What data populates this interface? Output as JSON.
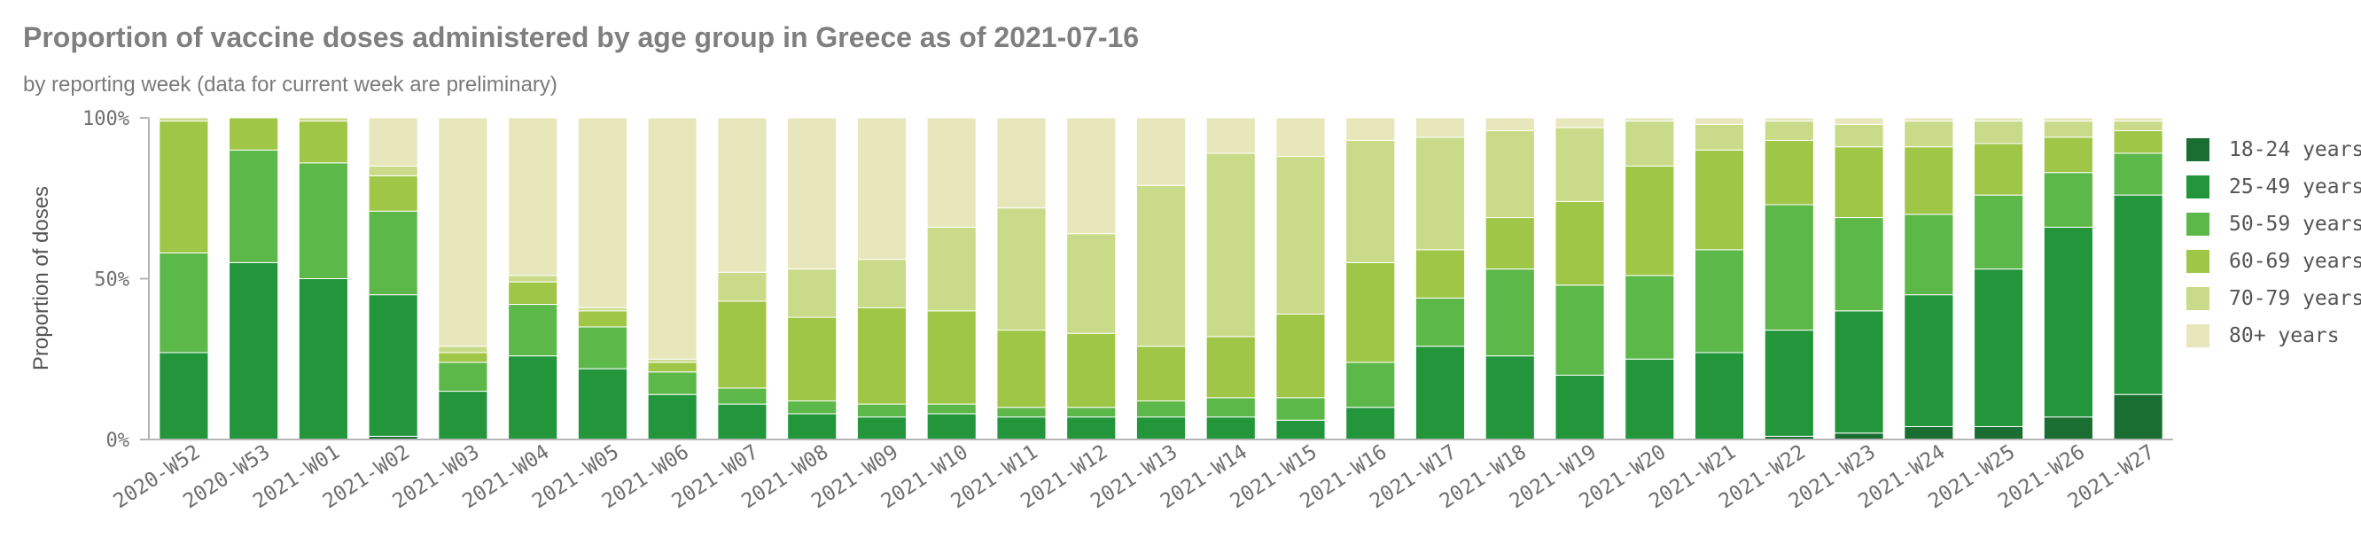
{
  "title": "Proportion of vaccine doses administered by age group in Greece as of 2021-07-16",
  "subtitle": "by reporting week (data for current week are preliminary)",
  "chart_data": {
    "type": "bar",
    "stacked": true,
    "title": "Proportion of vaccine doses administered by age group in Greece as of 2021-07-16",
    "subtitle": "by reporting week (data for current week are preliminary)",
    "xlabel": "",
    "ylabel": "Proportion of doses",
    "ylim": [
      0,
      100
    ],
    "yticks": [
      "0%",
      "50%",
      "100%"
    ],
    "grid": false,
    "legend_position": "right",
    "categories": [
      "2020-W52",
      "2020-W53",
      "2021-W01",
      "2021-W02",
      "2021-W03",
      "2021-W04",
      "2021-W05",
      "2021-W06",
      "2021-W07",
      "2021-W08",
      "2021-W09",
      "2021-W10",
      "2021-W11",
      "2021-W12",
      "2021-W13",
      "2021-W14",
      "2021-W15",
      "2021-W16",
      "2021-W17",
      "2021-W18",
      "2021-W19",
      "2021-W20",
      "2021-W21",
      "2021-W22",
      "2021-W23",
      "2021-W24",
      "2021-W25",
      "2021-W26",
      "2021-W27"
    ],
    "series": [
      {
        "name": "18-24 years",
        "color": "#1b6e31",
        "values": [
          0,
          0,
          0,
          1,
          0,
          0,
          0,
          0,
          0,
          0,
          0,
          0,
          0,
          0,
          0,
          0,
          0,
          0,
          0,
          0,
          0,
          0,
          0,
          1,
          2,
          4,
          4,
          7,
          14
        ]
      },
      {
        "name": "25-49 years",
        "color": "#23963b",
        "values": [
          27,
          55,
          50,
          44,
          15,
          26,
          22,
          14,
          11,
          8,
          7,
          8,
          7,
          7,
          7,
          7,
          6,
          10,
          29,
          26,
          20,
          25,
          27,
          33,
          38,
          41,
          49,
          59,
          62
        ]
      },
      {
        "name": "50-59 years",
        "color": "#5db84a",
        "values": [
          31,
          35,
          36,
          26,
          9,
          16,
          13,
          7,
          5,
          4,
          4,
          3,
          3,
          3,
          5,
          6,
          7,
          14,
          15,
          27,
          28,
          26,
          32,
          39,
          29,
          25,
          23,
          17,
          13
        ]
      },
      {
        "name": "60-69 years",
        "color": "#9fc646",
        "values": [
          41,
          10,
          13,
          11,
          3,
          7,
          5,
          3,
          27,
          26,
          30,
          29,
          24,
          23,
          17,
          19,
          26,
          31,
          15,
          16,
          26,
          34,
          31,
          20,
          22,
          21,
          16,
          11,
          7
        ]
      },
      {
        "name": "70-79 years",
        "color": "#c9da88",
        "values": [
          1,
          0,
          1,
          3,
          2,
          2,
          1,
          1,
          9,
          15,
          15,
          26,
          38,
          31,
          50,
          57,
          49,
          38,
          35,
          27,
          23,
          14,
          8,
          6,
          7,
          8,
          7,
          5,
          3
        ]
      },
      {
        "name": "80+ years",
        "color": "#e7e7bb",
        "values": [
          0,
          0,
          0,
          15,
          71,
          49,
          59,
          75,
          48,
          47,
          44,
          34,
          28,
          36,
          21,
          11,
          12,
          7,
          6,
          4,
          3,
          1,
          2,
          1,
          2,
          1,
          1,
          1,
          1
        ]
      }
    ]
  }
}
